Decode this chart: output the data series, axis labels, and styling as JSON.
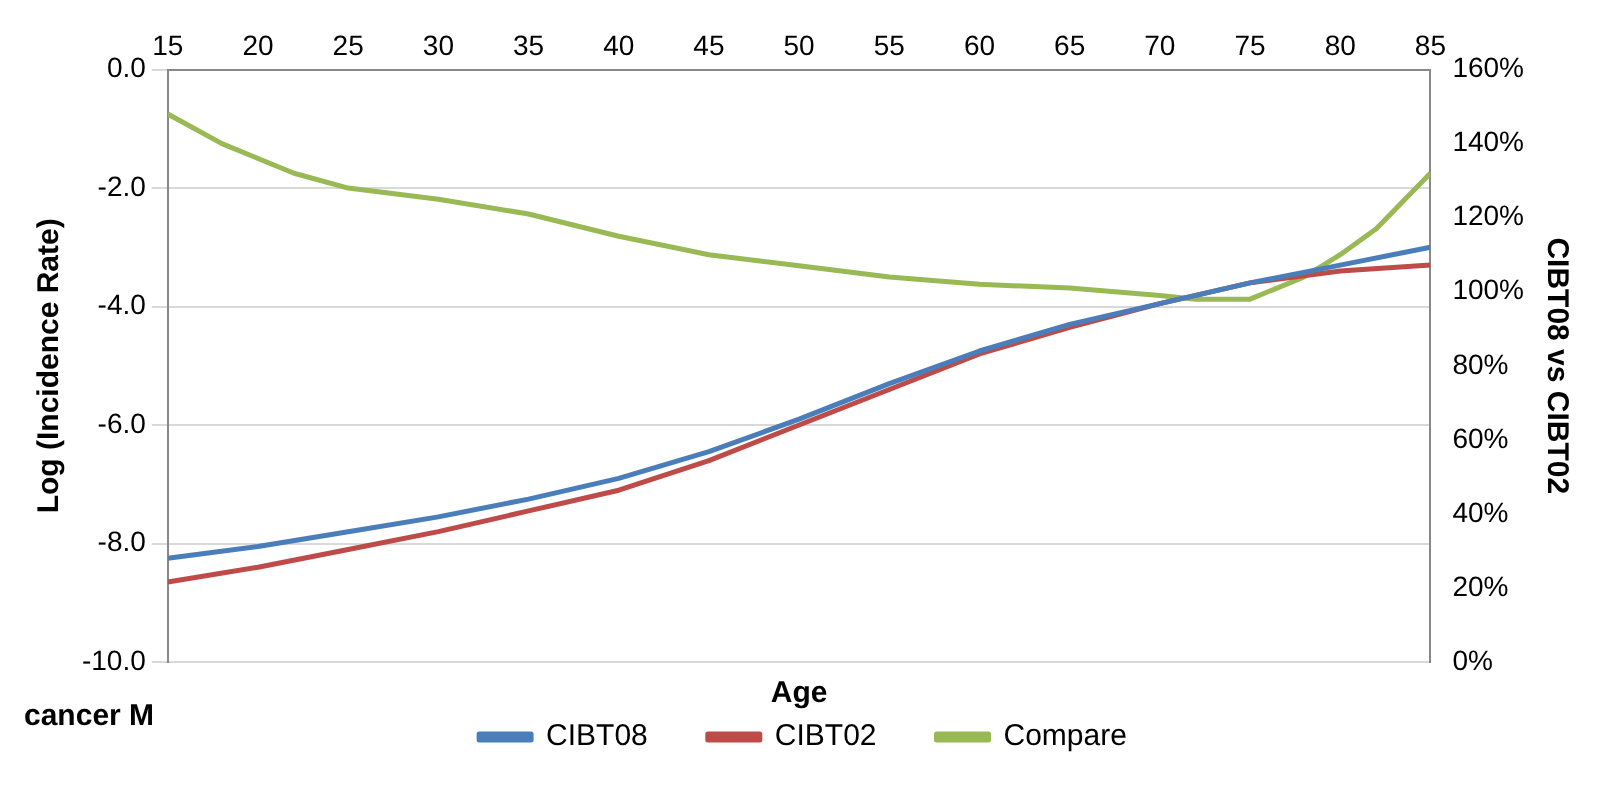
{
  "chart_data": {
    "type": "line",
    "xlabel": "Age",
    "ylabel": "Log (Incidence Rate)",
    "y2label": "CIBT08 vs CIBT02",
    "xlim": [
      15,
      85
    ],
    "xticks": [
      15,
      20,
      25,
      30,
      35,
      40,
      45,
      50,
      55,
      60,
      65,
      70,
      75,
      80,
      85
    ],
    "ylim": [
      -10,
      0
    ],
    "yticks": [
      {
        "value": -10,
        "label": "-10.0"
      },
      {
        "value": -8,
        "label": "-8.0"
      },
      {
        "value": -6,
        "label": "-6.0"
      },
      {
        "value": -4,
        "label": "-4.0"
      },
      {
        "value": -2,
        "label": "-2.0"
      },
      {
        "value": 0,
        "label": "0.0"
      }
    ],
    "y2lim": [
      0,
      160
    ],
    "y2ticks": [
      {
        "value": 0,
        "label": "0%"
      },
      {
        "value": 20,
        "label": "20%"
      },
      {
        "value": 40,
        "label": "40%"
      },
      {
        "value": 60,
        "label": "60%"
      },
      {
        "value": 80,
        "label": "80%"
      },
      {
        "value": 100,
        "label": "100%"
      },
      {
        "value": 120,
        "label": "120%"
      },
      {
        "value": 140,
        "label": "140%"
      },
      {
        "value": 160,
        "label": "160%"
      }
    ],
    "grid": "y",
    "legend": "bottom",
    "marker": "none",
    "line_style": "solid",
    "annotations": [
      "cancer M"
    ],
    "series": [
      {
        "name": "CIBT08",
        "color": "#4a7ebb",
        "x": [
          15,
          20,
          25,
          30,
          35,
          40,
          45,
          50,
          55,
          60,
          65,
          70,
          75,
          80,
          85
        ],
        "values": [
          -8.25,
          -8.05,
          -7.8,
          -7.55,
          -7.25,
          -6.9,
          -6.45,
          -5.9,
          -5.3,
          -4.75,
          -4.3,
          -3.95,
          -3.6,
          -3.3,
          -3.0
        ]
      },
      {
        "name": "CIBT02",
        "color": "#be4b48",
        "x": [
          15,
          20,
          25,
          30,
          35,
          40,
          45,
          50,
          55,
          60,
          65,
          70,
          75,
          80,
          85
        ],
        "values": [
          -8.65,
          -8.4,
          -8.1,
          -7.8,
          -7.45,
          -7.1,
          -6.6,
          -6.0,
          -5.4,
          -4.8,
          -4.35,
          -3.95,
          -3.6,
          -3.4,
          -3.3
        ]
      },
      {
        "name": "Compare",
        "color": "#98b954",
        "axis": "y2",
        "x": [
          15,
          18,
          20,
          22,
          25,
          30,
          35,
          40,
          45,
          50,
          55,
          60,
          65,
          70,
          72,
          75,
          78,
          80,
          82,
          85
        ],
        "values": [
          148,
          140,
          136,
          132,
          128,
          125,
          121,
          115,
          110,
          107,
          104,
          102,
          101,
          99,
          98,
          98,
          104,
          110,
          117,
          132
        ]
      }
    ]
  }
}
